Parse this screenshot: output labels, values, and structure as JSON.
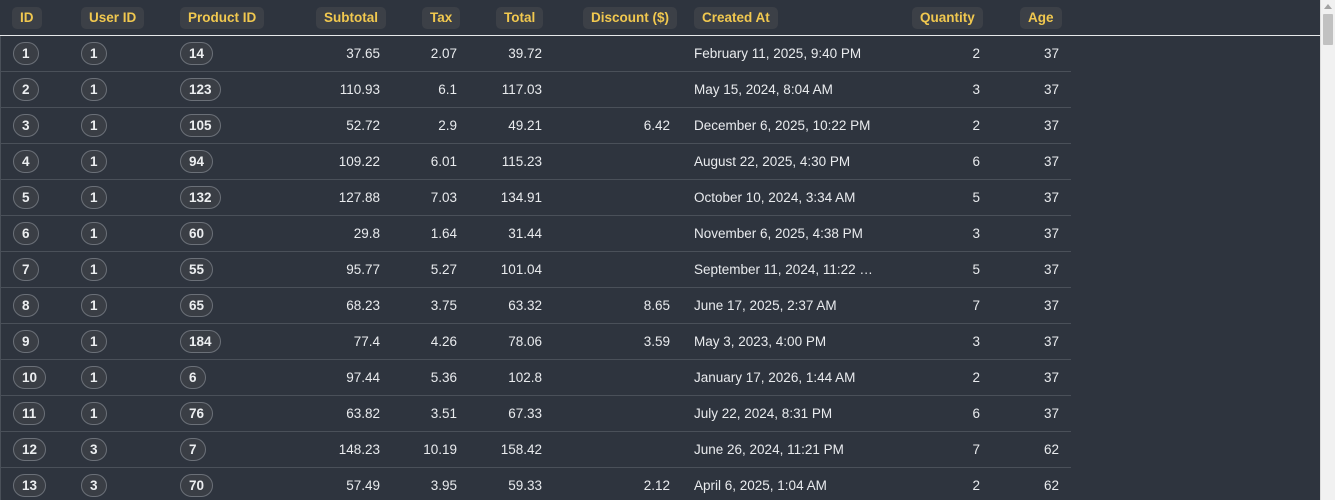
{
  "columns": [
    {
      "key": "id",
      "label": "ID"
    },
    {
      "key": "user_id",
      "label": "User ID"
    },
    {
      "key": "product_id",
      "label": "Product ID"
    },
    {
      "key": "subtotal",
      "label": "Subtotal"
    },
    {
      "key": "tax",
      "label": "Tax"
    },
    {
      "key": "total",
      "label": "Total"
    },
    {
      "key": "discount",
      "label": "Discount ($)"
    },
    {
      "key": "created_at",
      "label": "Created At"
    },
    {
      "key": "quantity",
      "label": "Quantity"
    },
    {
      "key": "age",
      "label": "Age"
    }
  ],
  "rows": [
    {
      "id": "1",
      "user_id": "1",
      "product_id": "14",
      "subtotal": "37.65",
      "tax": "2.07",
      "total": "39.72",
      "discount": "",
      "created_at": "February 11, 2025, 9:40 PM",
      "quantity": "2",
      "age": "37"
    },
    {
      "id": "2",
      "user_id": "1",
      "product_id": "123",
      "subtotal": "110.93",
      "tax": "6.1",
      "total": "117.03",
      "discount": "",
      "created_at": "May 15, 2024, 8:04 AM",
      "quantity": "3",
      "age": "37"
    },
    {
      "id": "3",
      "user_id": "1",
      "product_id": "105",
      "subtotal": "52.72",
      "tax": "2.9",
      "total": "49.21",
      "discount": "6.42",
      "created_at": "December 6, 2025, 10:22 PM",
      "quantity": "2",
      "age": "37"
    },
    {
      "id": "4",
      "user_id": "1",
      "product_id": "94",
      "subtotal": "109.22",
      "tax": "6.01",
      "total": "115.23",
      "discount": "",
      "created_at": "August 22, 2025, 4:30 PM",
      "quantity": "6",
      "age": "37"
    },
    {
      "id": "5",
      "user_id": "1",
      "product_id": "132",
      "subtotal": "127.88",
      "tax": "7.03",
      "total": "134.91",
      "discount": "",
      "created_at": "October 10, 2024, 3:34 AM",
      "quantity": "5",
      "age": "37"
    },
    {
      "id": "6",
      "user_id": "1",
      "product_id": "60",
      "subtotal": "29.8",
      "tax": "1.64",
      "total": "31.44",
      "discount": "",
      "created_at": "November 6, 2025, 4:38 PM",
      "quantity": "3",
      "age": "37"
    },
    {
      "id": "7",
      "user_id": "1",
      "product_id": "55",
      "subtotal": "95.77",
      "tax": "5.27",
      "total": "101.04",
      "discount": "",
      "created_at": "September 11, 2024, 11:22 …",
      "quantity": "5",
      "age": "37"
    },
    {
      "id": "8",
      "user_id": "1",
      "product_id": "65",
      "subtotal": "68.23",
      "tax": "3.75",
      "total": "63.32",
      "discount": "8.65",
      "created_at": "June 17, 2025, 2:37 AM",
      "quantity": "7",
      "age": "37"
    },
    {
      "id": "9",
      "user_id": "1",
      "product_id": "184",
      "subtotal": "77.4",
      "tax": "4.26",
      "total": "78.06",
      "discount": "3.59",
      "created_at": "May 3, 2023, 4:00 PM",
      "quantity": "3",
      "age": "37"
    },
    {
      "id": "10",
      "user_id": "1",
      "product_id": "6",
      "subtotal": "97.44",
      "tax": "5.36",
      "total": "102.8",
      "discount": "",
      "created_at": "January 17, 2026, 1:44 AM",
      "quantity": "2",
      "age": "37"
    },
    {
      "id": "11",
      "user_id": "1",
      "product_id": "76",
      "subtotal": "63.82",
      "tax": "3.51",
      "total": "67.33",
      "discount": "",
      "created_at": "July 22, 2024, 8:31 PM",
      "quantity": "6",
      "age": "37"
    },
    {
      "id": "12",
      "user_id": "3",
      "product_id": "7",
      "subtotal": "148.23",
      "tax": "10.19",
      "total": "158.42",
      "discount": "",
      "created_at": "June 26, 2024, 11:21 PM",
      "quantity": "7",
      "age": "62"
    },
    {
      "id": "13",
      "user_id": "3",
      "product_id": "70",
      "subtotal": "57.49",
      "tax": "3.95",
      "total": "59.33",
      "discount": "2.12",
      "created_at": "April 6, 2025, 1:04 AM",
      "quantity": "2",
      "age": "62"
    }
  ],
  "colors": {
    "background": "#2e343e",
    "header_text": "#f1c84f",
    "header_bg": "#3c4047",
    "cell_text": "#e9ebee",
    "row_border": "#4a5059",
    "pill_border": "#6b7078"
  }
}
